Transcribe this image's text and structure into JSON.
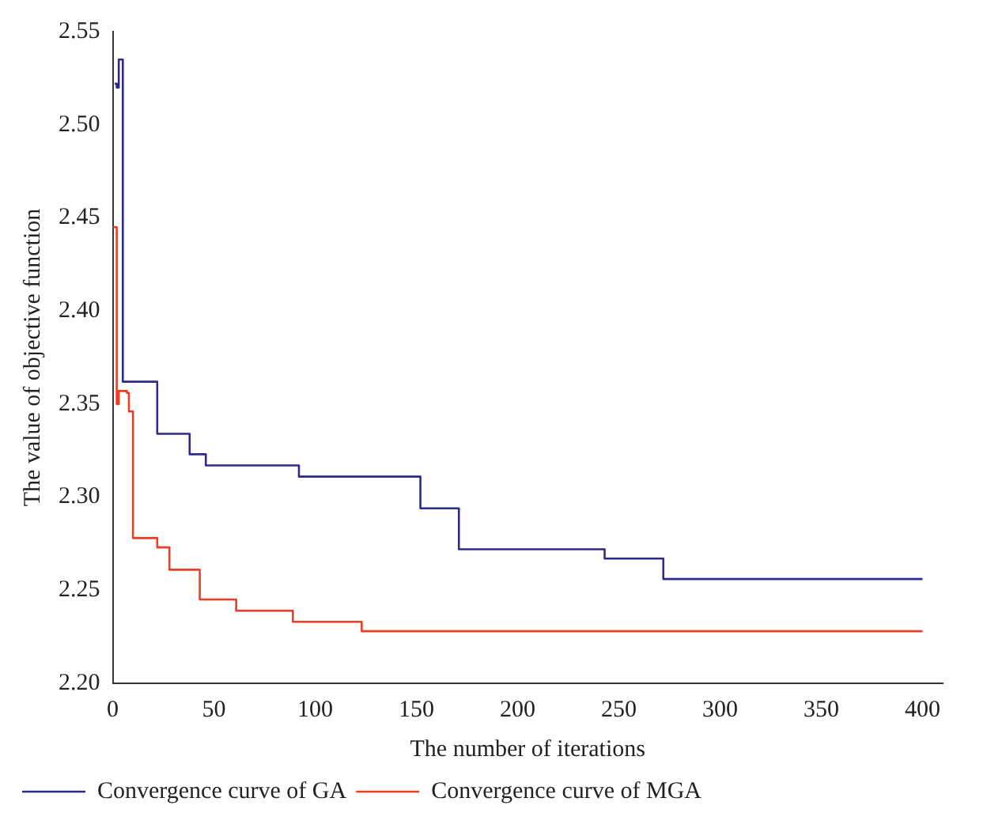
{
  "chart_data": {
    "type": "step",
    "xlabel": "The number of iterations",
    "ylabel": "The value of objective function",
    "xlim": [
      0,
      410
    ],
    "xticks": [
      0,
      50,
      100,
      150,
      200,
      250,
      300,
      350,
      400
    ],
    "ylim": [
      2.2,
      2.55
    ],
    "yticks": [
      {
        "value": 2.2,
        "label": "2.20"
      },
      {
        "value": 2.25,
        "label": "2.25"
      },
      {
        "value": 2.3,
        "label": "2.30"
      },
      {
        "value": 2.35,
        "label": "2.35"
      },
      {
        "value": 2.4,
        "label": "2.40"
      },
      {
        "value": 2.45,
        "label": "2.45"
      },
      {
        "value": 2.5,
        "label": "2.50"
      },
      {
        "value": 2.55,
        "label": "2.55"
      }
    ],
    "grid": false,
    "legend": "bottom left",
    "marker": "none",
    "line_style": "solid",
    "series": [
      {
        "name": "Convergence curve of GA",
        "color": "#2e2a8c",
        "x": [
          1,
          2,
          3,
          5,
          22,
          38,
          46,
          92,
          152,
          171,
          243,
          272,
          400
        ],
        "values": [
          2.522,
          2.52,
          2.535,
          2.362,
          2.334,
          2.323,
          2.317,
          2.311,
          2.294,
          2.272,
          2.267,
          2.256,
          2.256
        ]
      },
      {
        "name": "Convergence curve of MGA",
        "color": "#f03c22",
        "x": [
          0,
          2,
          3,
          7,
          8,
          10,
          22,
          28,
          43,
          61,
          89,
          123,
          400
        ],
        "values": [
          2.445,
          2.35,
          2.357,
          2.356,
          2.346,
          2.278,
          2.273,
          2.261,
          2.245,
          2.239,
          2.233,
          2.228,
          2.228
        ]
      }
    ]
  }
}
